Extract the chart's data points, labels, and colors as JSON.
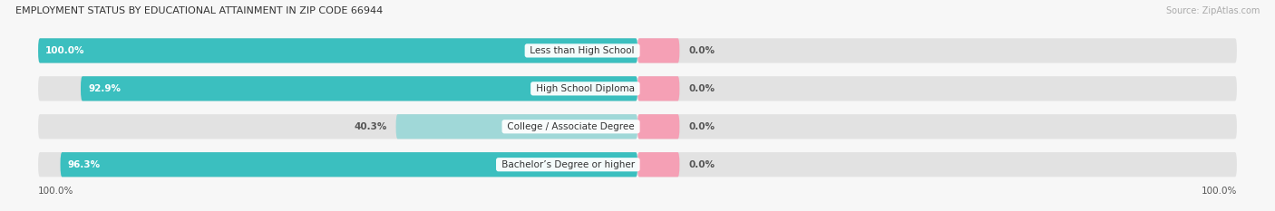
{
  "title": "EMPLOYMENT STATUS BY EDUCATIONAL ATTAINMENT IN ZIP CODE 66944",
  "source": "Source: ZipAtlas.com",
  "categories": [
    "Less than High School",
    "High School Diploma",
    "College / Associate Degree",
    "Bachelor’s Degree or higher"
  ],
  "labor_force_pct": [
    100.0,
    92.9,
    40.3,
    96.3
  ],
  "unemployed_pct": [
    0.0,
    0.0,
    0.0,
    0.0
  ],
  "color_labor_dark": "#3bbfbf",
  "color_labor_light": "#a0d8d8",
  "color_unemployed": "#f5a0b5",
  "color_bg_bar": "#e2e2e2",
  "color_bg": "#f7f7f7",
  "bar_height": 0.62,
  "figsize": [
    14.06,
    2.33
  ],
  "dpi": 100,
  "left_axis_label": "100.0%",
  "right_axis_label": "100.0%"
}
